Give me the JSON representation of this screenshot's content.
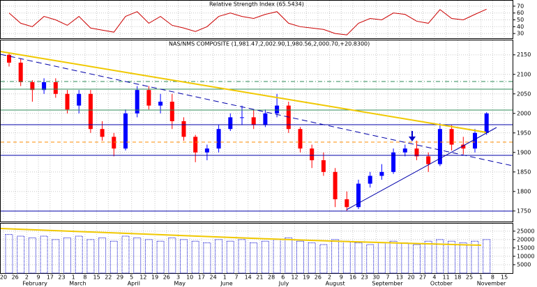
{
  "chart_data": [
    {
      "type": "line",
      "title": "Relative Strength Index (65.5434)",
      "color": "#cc0000",
      "values": [
        60,
        45,
        40,
        55,
        50,
        42,
        55,
        38,
        35,
        32,
        55,
        62,
        45,
        55,
        42,
        38,
        33,
        40,
        55,
        60,
        55,
        52,
        58,
        62,
        45,
        40,
        38,
        36,
        30,
        28,
        45,
        52,
        50,
        60,
        58,
        48,
        45,
        65,
        52,
        50,
        58,
        65.5434,
        null,
        null
      ],
      "ylim": [
        23,
        78
      ],
      "yticks": [
        70,
        60,
        50,
        40,
        30
      ],
      "grid": true
    },
    {
      "type": "candlestick",
      "title": "NAS/NMS COMPOSITE (1,981.47,2,002.90,1,980.56,2,000.70,+20.8300)",
      "categories": [
        "20",
        "26",
        "2",
        "9",
        "17",
        "23",
        "1",
        "8",
        "15",
        "22",
        "29",
        "5",
        "12",
        "19",
        "26",
        "3",
        "10",
        "17",
        "24",
        "1",
        "7",
        "14",
        "21",
        "28",
        "6",
        "12",
        "19",
        "26",
        "2",
        "9",
        "16",
        "23",
        "30",
        "7",
        "13",
        "20",
        "27",
        "4",
        "11",
        "18",
        "25",
        "1",
        "8",
        "15"
      ],
      "month_labels": [
        null,
        null,
        "February",
        null,
        null,
        null,
        "March",
        null,
        null,
        null,
        null,
        "April",
        null,
        null,
        null,
        "May",
        null,
        null,
        null,
        "June",
        null,
        null,
        null,
        null,
        "July",
        null,
        null,
        null,
        "August",
        null,
        null,
        null,
        "September",
        null,
        null,
        null,
        null,
        "October",
        null,
        null,
        null,
        "November",
        null,
        null
      ],
      "open": [
        2150,
        2130,
        2080,
        2060,
        2080,
        2050,
        2020,
        2050,
        1960,
        1940,
        1910,
        2000,
        2060,
        2020,
        2030,
        1980,
        1940,
        1900,
        1910,
        1960,
        1990,
        1990,
        1970,
        2000,
        2020,
        1960,
        1910,
        1880,
        1850,
        1780,
        1760,
        1820,
        1840,
        1850,
        1900,
        1910,
        1890,
        1870,
        1960,
        1920,
        1910,
        1950,
        null,
        null
      ],
      "high": [
        2155,
        2140,
        2085,
        2090,
        2090,
        2060,
        2060,
        2060,
        1980,
        1950,
        2010,
        2070,
        2070,
        2050,
        2050,
        1990,
        1945,
        1920,
        1970,
        2000,
        2020,
        2010,
        2010,
        2050,
        2030,
        1965,
        1920,
        1900,
        1860,
        1800,
        1830,
        1850,
        1870,
        1910,
        1920,
        1930,
        1900,
        1975,
        1970,
        1940,
        1960,
        2003,
        null,
        null
      ],
      "low": [
        2120,
        2070,
        2030,
        2050,
        2040,
        2000,
        2000,
        1950,
        1930,
        1890,
        1905,
        1990,
        2010,
        2000,
        1960,
        1930,
        1875,
        1880,
        1900,
        1955,
        1970,
        1960,
        1965,
        1990,
        1950,
        1900,
        1860,
        1840,
        1760,
        1750,
        1755,
        1810,
        1830,
        1845,
        1890,
        1880,
        1850,
        1865,
        1905,
        1895,
        1900,
        1945,
        null,
        null
      ],
      "close": [
        2130,
        2080,
        2060,
        2080,
        2050,
        2010,
        2050,
        1960,
        1940,
        1910,
        2000,
        2060,
        2020,
        2030,
        1980,
        1940,
        1900,
        1910,
        1960,
        1990,
        1990,
        1970,
        2000,
        2020,
        1960,
        1910,
        1880,
        1850,
        1780,
        1760,
        1820,
        1840,
        1850,
        1900,
        1910,
        1890,
        1870,
        1960,
        1920,
        1910,
        1950,
        2000,
        null,
        null
      ],
      "up_color": "#0000ff",
      "down_color": "#ff0000",
      "ylim": [
        1723,
        2187
      ],
      "yticks": [
        2150,
        2100,
        2050,
        2000,
        1950,
        1900,
        1850,
        1800,
        1750
      ],
      "grid": true
    },
    {
      "type": "bar",
      "color": "#0000cc",
      "values": [
        23000,
        22000,
        21000,
        22000,
        20000,
        21000,
        22000,
        20000,
        21000,
        19000,
        22000,
        21000,
        20000,
        19000,
        21000,
        20000,
        19000,
        18000,
        20000,
        19000,
        20000,
        18000,
        19000,
        20000,
        21000,
        19000,
        18000,
        17000,
        20000,
        19000,
        18000,
        17000,
        18000,
        19000,
        18000,
        17000,
        19000,
        20000,
        19000,
        18000,
        19000,
        20000,
        null,
        null
      ],
      "ylim": [
        0,
        29500
      ],
      "yticks": [
        25000,
        20000,
        15000,
        10000,
        5000
      ],
      "grid": true
    }
  ]
}
